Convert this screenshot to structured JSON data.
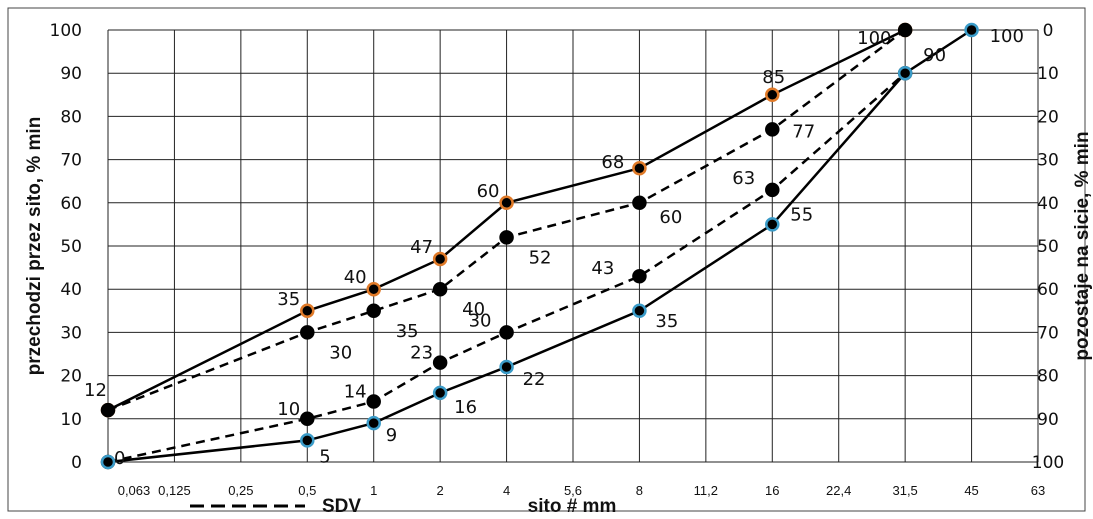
{
  "chart_data": {
    "type": "line",
    "xlabel": "sito # mm",
    "ylabel": "przechodzi przez sito, % min",
    "y2label": "pozostaje na sicie, % min",
    "x_ticks": [
      "0,063",
      "0,125",
      "0,25",
      "0,5",
      "1",
      "2",
      "4",
      "5,6",
      "8",
      "11,2",
      "16",
      "22,4",
      "31,5",
      "45",
      "63"
    ],
    "x_scale": "log",
    "ylim": [
      0,
      100
    ],
    "y_ticks": [
      0,
      10,
      20,
      30,
      40,
      50,
      60,
      70,
      80,
      90,
      100
    ],
    "y2_ticks": [
      100,
      90,
      80,
      70,
      60,
      50,
      40,
      30,
      20,
      10,
      0
    ],
    "grid": true,
    "legend": {
      "label": "SDV",
      "style": "dashed"
    },
    "vertical_line_at": "16",
    "series": [
      {
        "style": "solid",
        "x": [
          "0,063",
          "0,5",
          "1",
          "2",
          "4",
          "8",
          "16",
          "31,5"
        ],
        "values": [
          12,
          35,
          40,
          47,
          60,
          68,
          85,
          100
        ],
        "labels": [
          "12",
          "35",
          "40",
          "47",
          "60",
          "68",
          "85",
          "100"
        ],
        "marker_color": "#e07a28"
      },
      {
        "style": "dashed",
        "x": [
          "0,063",
          "0,5",
          "1",
          "2",
          "4",
          "8",
          "16",
          "31,5"
        ],
        "values": [
          12,
          30,
          35,
          40,
          52,
          60,
          77,
          100
        ],
        "labels": [
          "",
          "30",
          "35",
          "40",
          "52",
          "60",
          "77",
          ""
        ],
        "marker_color": "#000000"
      },
      {
        "style": "dashed",
        "x": [
          "0,063",
          "0,5",
          "1",
          "2",
          "4",
          "8",
          "16",
          "31,5"
        ],
        "values": [
          0,
          10,
          14,
          23,
          30,
          43,
          63,
          90
        ],
        "labels": [
          "",
          "10",
          "14",
          "23",
          "30",
          "43",
          "63",
          ""
        ],
        "marker_color": "#000000"
      },
      {
        "style": "solid",
        "x": [
          "0,063",
          "0,5",
          "1",
          "2",
          "4",
          "8",
          "16",
          "31,5",
          "45"
        ],
        "values": [
          0,
          5,
          9,
          16,
          22,
          35,
          55,
          90,
          100
        ],
        "labels": [
          "0",
          "5",
          "9",
          "16",
          "22",
          "35",
          "55",
          "90",
          "100"
        ],
        "marker_color": "#3a9bc8"
      }
    ]
  }
}
